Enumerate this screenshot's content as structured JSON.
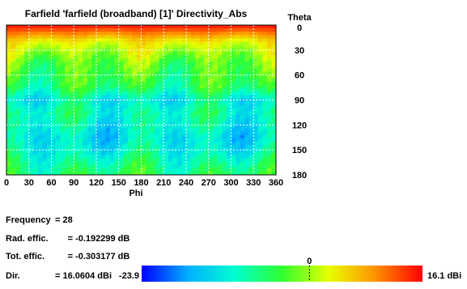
{
  "chart_data": {
    "type": "heatmap",
    "title": "Farfield 'farfield (broadband) [1]' Directivity_Abs",
    "xlabel": "Phi",
    "ylabel": "Theta",
    "xlim": [
      0,
      360
    ],
    "ylim": [
      0,
      180
    ],
    "x_ticks": [
      "0",
      "30",
      "60",
      "90",
      "120",
      "150",
      "180",
      "210",
      "240",
      "270",
      "300",
      "330",
      "360"
    ],
    "y_ticks": [
      "0",
      "30",
      "60",
      "90",
      "120",
      "150",
      "180"
    ],
    "grid": true,
    "colorscale": {
      "min_label": "-23.9",
      "max_label": "16.1 dBi",
      "zero_label": "0",
      "min": -23.9,
      "max": 16.1
    },
    "theta_profile": [
      {
        "theta": 0,
        "value": 15.5
      },
      {
        "theta": 8,
        "value": 11.0
      },
      {
        "theta": 20,
        "value": 3.5
      },
      {
        "theta": 30,
        "value": 1.0
      },
      {
        "theta": 45,
        "value": -2.5
      },
      {
        "theta": 60,
        "value": -4.0
      },
      {
        "theta": 75,
        "value": -6.0
      },
      {
        "theta": 90,
        "value": -12.0
      },
      {
        "theta": 105,
        "value": -9.5
      },
      {
        "theta": 120,
        "value": -11.0
      },
      {
        "theta": 135,
        "value": -13.0
      },
      {
        "theta": 150,
        "value": -11.5
      },
      {
        "theta": 165,
        "value": -8.5
      },
      {
        "theta": 180,
        "value": -6.0
      }
    ],
    "colors": {
      "stops": [
        "#0000ff",
        "#00b0ff",
        "#00ffd0",
        "#30ff30",
        "#e8ff00",
        "#ff9000",
        "#ff0000"
      ]
    }
  },
  "info": [
    {
      "label": "Frequency",
      "value": "= 28"
    },
    {
      "label": "Rad. effic.",
      "value": "= -0.192299 dB"
    },
    {
      "label": "Tot. effic.",
      "value": "= -0.303177 dB"
    },
    {
      "label": "Dir.",
      "value": "= 16.0604 dBi"
    }
  ]
}
